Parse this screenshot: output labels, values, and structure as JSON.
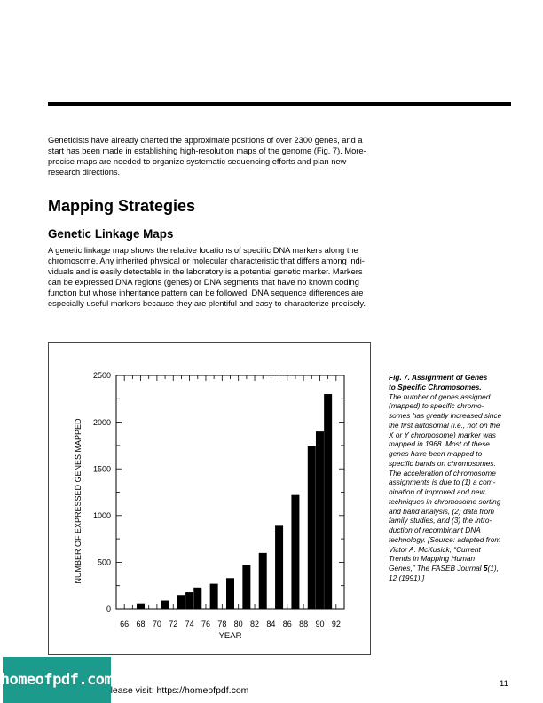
{
  "intro_lines": [
    "Geneticists have already charted the approximate positions of over 2300 genes, and a",
    "start has been made in establishing high-resolution maps of the genome (Fig. 7). More-",
    "precise maps are needed to organize systematic sequencing efforts and plan new",
    "research directions."
  ],
  "section_heading": "Mapping Strategies",
  "subsection_heading": "Genetic Linkage Maps",
  "linkage_lines": [
    "A genetic linkage map shows the relative locations of specific DNA markers along the",
    "chromosome. Any inherited physical or molecular characteristic that differs among indi-",
    "viduals and is easily detectable in the laboratory is a potential genetic marker. Markers",
    "can be expressed DNA regions (genes) or DNA segments that have no known coding",
    "function but whose inheritance pattern can be followed. DNA sequence differences are",
    "especially useful markers because they are plentiful and easy to characterize precisely."
  ],
  "chart_data": {
    "type": "bar",
    "title": "",
    "xlabel": "YEAR",
    "ylabel": "NUMBER OF EXPRESSED GENES MAPPED",
    "ylim": [
      0,
      2500
    ],
    "xlim": [
      65,
      93
    ],
    "yticks": [
      0,
      500,
      1000,
      1500,
      2000,
      2500
    ],
    "xticks": [
      "66",
      "68",
      "70",
      "72",
      "74",
      "76",
      "78",
      "80",
      "82",
      "84",
      "86",
      "88",
      "90",
      "92"
    ],
    "grid": false,
    "years": [
      68,
      71,
      73,
      74,
      75,
      77,
      79,
      81,
      83,
      85,
      87,
      89,
      90,
      91
    ],
    "values": [
      60,
      90,
      150,
      180,
      230,
      270,
      330,
      470,
      600,
      890,
      1220,
      1740,
      1900,
      2300
    ]
  },
  "caption": {
    "title_lines": [
      "Fig. 7. Assignment of Genes",
      "to Specific Chromosomes."
    ],
    "lines": [
      "The number of genes assigned",
      "(mapped) to specific chromo-",
      "somes has greatly increased since",
      "the first autosomal (i.e., not on the",
      "X or Y chromosome) marker was",
      "mapped in 1968. Most of these",
      "genes have been mapped to",
      "specific bands on chromosomes.",
      "The acceleration of chromosome",
      "assignments is due to (1) a com-",
      "bination of improved and new",
      "techniques in chromosome sorting",
      "and band analysis, (2) data from",
      "family studies, and (3) the intro-",
      "duction of recombinant DNA",
      "technology. [Source: adapted from",
      "Victor A. McKusick, “Current",
      "Trends in Mapping Human"
    ],
    "last_line": {
      "pre": "Genes,” The FASEB Journal ",
      "bold": "5",
      "post": "(1),"
    },
    "final_line": "12 (1991).]"
  },
  "page_number": "11",
  "footer_text": "e please visit: https://homeofpdf.com",
  "banner_text": "homeofpdf.com",
  "colors": {
    "banner": "#1c9a8c"
  }
}
